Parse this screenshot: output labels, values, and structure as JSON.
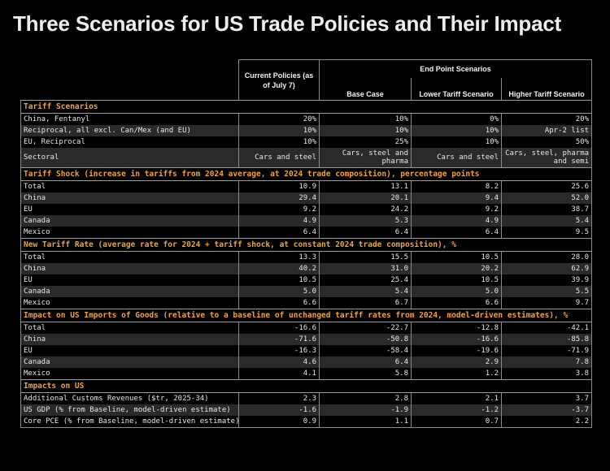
{
  "title": "Three Scenarios for US Trade Policies and Their Impact",
  "header": {
    "current": "Current Policies (as of July 7)",
    "end_point": "End Point Scenarios",
    "base": "Base Case",
    "lower": "Lower Tariff Scenario",
    "higher": "Higher Tariff Scenario"
  },
  "sections": [
    {
      "title": "Tariff Scenarios",
      "rows": [
        {
          "label": "China, Fentanyl",
          "values": [
            "20%",
            "10%",
            "0%",
            "20%"
          ]
        },
        {
          "label": "Reciprocal, all excl. Can/Mex (and EU)",
          "values": [
            "10%",
            "10%",
            "10%",
            "Apr-2 list"
          ]
        },
        {
          "label": "EU, Reciprocal",
          "values": [
            "10%",
            "25%",
            "10%",
            "50%"
          ]
        },
        {
          "label": "Sectoral",
          "values": [
            "Cars and steel",
            "Cars, steel and pharma",
            "Cars and steel",
            "Cars, steel, pharma and semi"
          ],
          "tall": true
        }
      ]
    },
    {
      "title": "Tariff Shock (increase in tariffs from 2024 average, at 2024 trade composition), percentage points",
      "rows": [
        {
          "label": "Total",
          "values": [
            "10.9",
            "13.1",
            "8.2",
            "25.6"
          ]
        },
        {
          "label": "China",
          "values": [
            "29.4",
            "20.1",
            "9.4",
            "52.0"
          ]
        },
        {
          "label": "EU",
          "values": [
            "9.2",
            "24.2",
            "9.2",
            "38.7"
          ]
        },
        {
          "label": "Canada",
          "values": [
            "4.9",
            "5.3",
            "4.9",
            "5.4"
          ]
        },
        {
          "label": "Mexico",
          "values": [
            "6.4",
            "6.4",
            "6.4",
            "9.5"
          ]
        }
      ]
    },
    {
      "title": "New Tariff Rate (average rate for 2024 + tariff shock, at constant 2024 trade composition), %",
      "rows": [
        {
          "label": "Total",
          "values": [
            "13.3",
            "15.5",
            "10.5",
            "28.0"
          ]
        },
        {
          "label": "China",
          "values": [
            "40.2",
            "31.0",
            "20.2",
            "62.9"
          ]
        },
        {
          "label": "EU",
          "values": [
            "10.5",
            "25.4",
            "10.5",
            "39.9"
          ]
        },
        {
          "label": "Canada",
          "values": [
            "5.0",
            "5.4",
            "5.0",
            "5.5"
          ]
        },
        {
          "label": "Mexico",
          "values": [
            "6.6",
            "6.7",
            "6.6",
            "9.7"
          ]
        }
      ]
    },
    {
      "title": "Impact on US Imports of Goods (relative to a baseline of unchanged tariff rates from 2024, model-driven estimates), %",
      "rows": [
        {
          "label": "Total",
          "values": [
            "-16.6",
            "-22.7",
            "-12.8",
            "-42.1"
          ]
        },
        {
          "label": "China",
          "values": [
            "-71.6",
            "-50.8",
            "-16.6",
            "-85.8"
          ]
        },
        {
          "label": "EU",
          "values": [
            "-16.3",
            "-58.4",
            "-19.6",
            "-71.9"
          ]
        },
        {
          "label": "Canada",
          "values": [
            "4.6",
            "6.4",
            "2.9",
            "7.8"
          ]
        },
        {
          "label": "Mexico",
          "values": [
            "4.1",
            "5.8",
            "1.2",
            "3.8"
          ]
        }
      ]
    },
    {
      "title": "Impacts on US",
      "rows": [
        {
          "label": "Additional Customs Revenues ($tr, 2025-34)",
          "values": [
            "2.3",
            "2.8",
            "2.1",
            "3.7"
          ]
        },
        {
          "label": "US GDP (% from Baseline, model-driven estimate)",
          "values": [
            "-1.6",
            "-1.9",
            "-1.2",
            "-3.7"
          ]
        },
        {
          "label": "Core PCE (% from Baseline, model-driven estimate)",
          "values": [
            "0.9",
            "1.1",
            "0.7",
            "2.2"
          ]
        }
      ]
    }
  ]
}
